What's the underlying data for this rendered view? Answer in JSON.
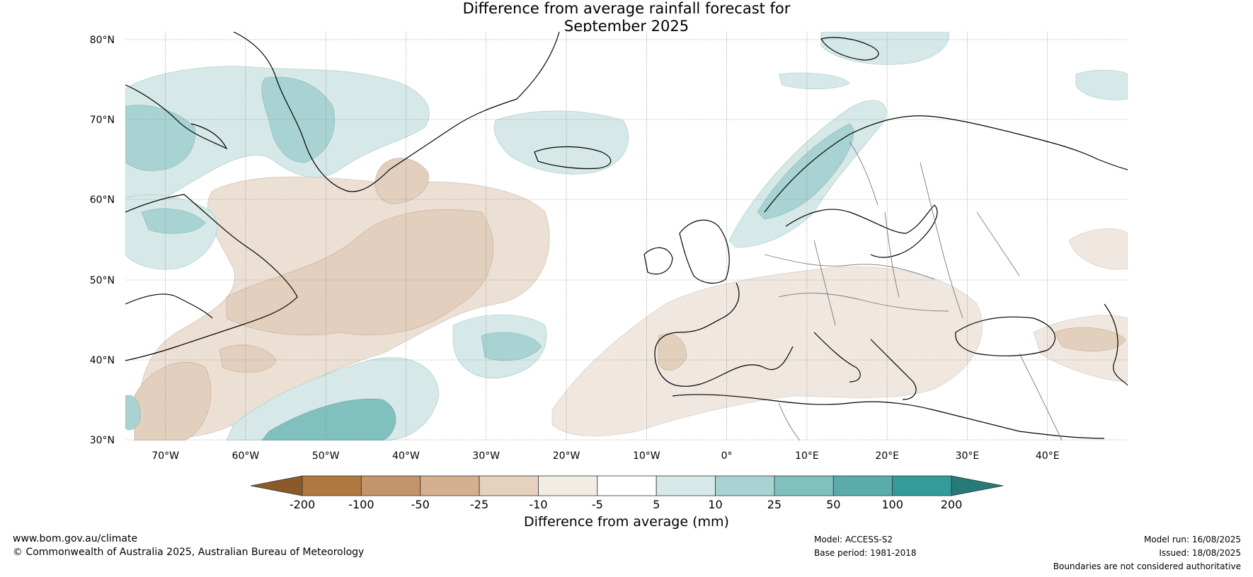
{
  "title_line1": "Difference from average rainfall forecast for",
  "title_line2": "September 2025",
  "lat_labels": [
    "80°N",
    "70°N",
    "60°N",
    "50°N",
    "40°N",
    "30°N"
  ],
  "lon_labels": [
    "70°W",
    "60°W",
    "50°W",
    "40°W",
    "30°W",
    "20°W",
    "10°W",
    "0°",
    "10°E",
    "20°E",
    "30°E",
    "40°E"
  ],
  "colorbar": {
    "title": "Difference from average (mm)",
    "ticks": [
      "-200",
      "-100",
      "-50",
      "-25",
      "-10",
      "-5",
      "5",
      "10",
      "25",
      "50",
      "100",
      "200"
    ],
    "colors": [
      "#8a5a2b",
      "#b07840",
      "#c4956a",
      "#d4b08f",
      "#e6d1bf",
      "#f2ece5",
      "#ffffff",
      "#d6e9e8",
      "#a9d3d2",
      "#80c0bf",
      "#5aabab",
      "#339b99",
      "#267a78"
    ]
  },
  "footer": {
    "website": "www.bom.gov.au/climate",
    "copyright": "© Commonwealth of Australia 2025, Australian Bureau of Meteorology",
    "model": "Model: ACCESS-S2",
    "base_period": "Base period: 1981-2018",
    "model_run": "Model run: 16/08/2025",
    "issued": "Issued: 18/08/2025",
    "boundaries": "Boundaries are not considered authoritative"
  }
}
